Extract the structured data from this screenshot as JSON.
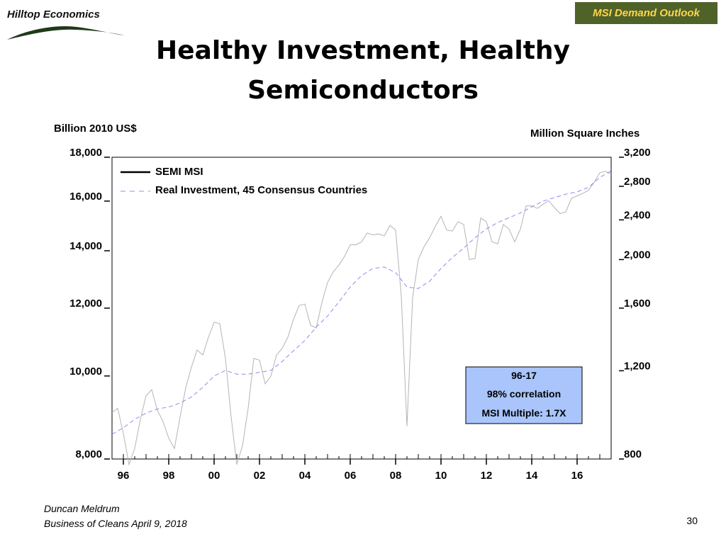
{
  "header": {
    "logo_text": "Hilltop Economics",
    "badge": "MSI Demand Outlook",
    "title_line1": "Healthy Investment, Healthy",
    "title_line2": "Semiconductors"
  },
  "footer": {
    "author": "Duncan Meldrum",
    "event": "Business of Cleans April 9, 2018",
    "page_number": "30"
  },
  "colors": {
    "badge_bg": "#4f6228",
    "badge_text": "#ffd54a",
    "semi_msi_line": "#b4b4b4",
    "investment_line": "#8c8cf0",
    "annotation_bg": "#a9c5fb"
  },
  "chart_data": {
    "type": "line",
    "left_axis_title": "Billion 2010 US$",
    "right_axis_title": "Million Square Inches",
    "left_ticks": [
      "18,000",
      "16,000",
      "14,000",
      "12,000",
      "10,000",
      "8,000"
    ],
    "right_ticks": [
      "3,200",
      "2,800",
      "2,400",
      "2,000",
      "1,600",
      "1,200",
      "800"
    ],
    "x_ticks": [
      "96",
      "98",
      "00",
      "02",
      "04",
      "06",
      "08",
      "10",
      "12",
      "14",
      "16"
    ],
    "left_scale": "log",
    "right_scale": "log",
    "left_ylim": [
      8000,
      18000
    ],
    "right_ylim": [
      800,
      3200
    ],
    "xlim": [
      1995.5,
      2017.5
    ],
    "legend": [
      "SEMI MSI",
      "Real Investment, 45 Consensus Countries"
    ],
    "legend_placement": "top-left",
    "annotation": [
      "96-17",
      "98% correlation",
      "MSI Multiple: 1.7X"
    ],
    "series": [
      {
        "name": "SEMI MSI",
        "axis": "right",
        "x": [
          1995.5,
          1995.75,
          1996,
          1996.25,
          1996.5,
          1996.75,
          1997,
          1997.25,
          1997.5,
          1997.75,
          1998,
          1998.25,
          1998.5,
          1998.75,
          1999,
          1999.25,
          1999.5,
          1999.75,
          2000,
          2000.25,
          2000.5,
          2000.75,
          2001,
          2001.25,
          2001.5,
          2001.75,
          2002,
          2002.25,
          2002.5,
          2002.75,
          2003,
          2003.25,
          2003.5,
          2003.75,
          2004,
          2004.25,
          2004.5,
          2004.75,
          2005,
          2005.25,
          2005.5,
          2005.75,
          2006,
          2006.25,
          2006.5,
          2006.75,
          2007,
          2007.25,
          2007.5,
          2007.75,
          2008,
          2008.25,
          2008.5,
          2008.75,
          2009,
          2009.25,
          2009.5,
          2009.75,
          2010,
          2010.25,
          2010.5,
          2010.75,
          2011,
          2011.25,
          2011.5,
          2011.75,
          2012,
          2012.25,
          2012.5,
          2012.75,
          2013,
          2013.25,
          2013.5,
          2013.75,
          2014,
          2014.25,
          2014.5,
          2014.75,
          2015,
          2015.25,
          2015.5,
          2015.75,
          2016,
          2016.25,
          2016.5,
          2016.75,
          2017,
          2017.25,
          2017.5
        ],
        "values": [
          990,
          1010,
          900,
          780,
          840,
          960,
          1070,
          1100,
          1000,
          950,
          880,
          840,
          970,
          1110,
          1220,
          1320,
          1290,
          1400,
          1500,
          1490,
          1270,
          970,
          780,
          850,
          1010,
          1270,
          1260,
          1130,
          1170,
          1290,
          1330,
          1400,
          1520,
          1620,
          1630,
          1480,
          1460,
          1640,
          1800,
          1890,
          1950,
          2030,
          2140,
          2140,
          2170,
          2260,
          2240,
          2250,
          2230,
          2340,
          2290,
          1690,
          930,
          1680,
          2000,
          2120,
          2210,
          2330,
          2440,
          2290,
          2280,
          2380,
          2350,
          2000,
          2010,
          2420,
          2380,
          2170,
          2150,
          2350,
          2300,
          2170,
          2300,
          2560,
          2560,
          2530,
          2580,
          2620,
          2540,
          2470,
          2490,
          2650,
          2680,
          2710,
          2750,
          2850,
          2980,
          3000,
          2960
        ]
      },
      {
        "name": "Real Investment, 45 Consensus Countries",
        "axis": "left",
        "x": [
          1995.5,
          1996,
          1996.5,
          1997,
          1997.5,
          1998,
          1998.5,
          1999,
          1999.5,
          2000,
          2000.5,
          2001,
          2001.5,
          2002,
          2002.5,
          2003,
          2003.5,
          2004,
          2004.5,
          2005,
          2005.5,
          2006,
          2006.5,
          2007,
          2007.5,
          2008,
          2008.5,
          2009,
          2009.5,
          2010,
          2010.5,
          2011,
          2011.5,
          2012,
          2012.5,
          2013,
          2013.5,
          2014,
          2014.5,
          2015,
          2015.5,
          2016,
          2016.5,
          2017,
          2017.5
        ],
        "values": [
          8550,
          8700,
          8900,
          9050,
          9150,
          9200,
          9300,
          9450,
          9700,
          10000,
          10150,
          10050,
          10050,
          10100,
          10150,
          10400,
          10700,
          11000,
          11400,
          11750,
          12200,
          12700,
          13100,
          13350,
          13400,
          13200,
          12700,
          12650,
          12900,
          13350,
          13750,
          14100,
          14500,
          14850,
          15100,
          15300,
          15500,
          15750,
          16000,
          16150,
          16300,
          16400,
          16600,
          17050,
          17350
        ]
      }
    ]
  }
}
